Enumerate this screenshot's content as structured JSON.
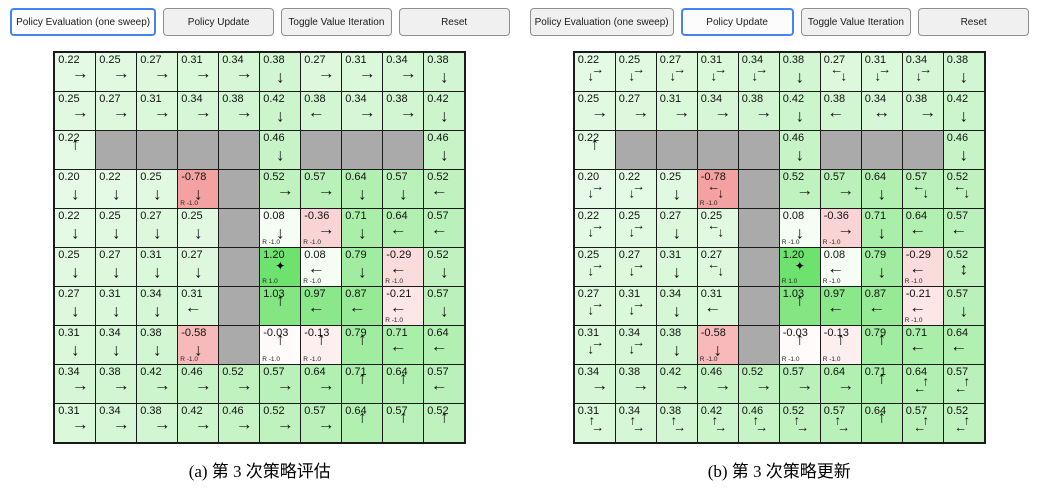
{
  "colors": {
    "active_button_border": "#4285f4",
    "button_bg": "#f0f0f0",
    "active_button_bg": "#fcfcfc",
    "wall": "#aaaaaa",
    "grid_line": "#1a1a1a",
    "positive_max": "#6ee26e",
    "negative_max": "#ee6e6e"
  },
  "panels": [
    {
      "caption": "(a) 第 3 次策略评估",
      "buttons": [
        {
          "label": "Policy Evaluation (one sweep)",
          "active": true
        },
        {
          "label": "Policy Update",
          "active": false
        },
        {
          "label": "Toggle Value Iteration",
          "active": false
        },
        {
          "label": "Reset",
          "active": false
        }
      ],
      "grid": {
        "rows": [
          [
            {
              "v": "0.22",
              "a": "R"
            },
            {
              "v": "0.25",
              "a": "R"
            },
            {
              "v": "0.27",
              "a": "R"
            },
            {
              "v": "0.31",
              "a": "R"
            },
            {
              "v": "0.34",
              "a": "R"
            },
            {
              "v": "0.38",
              "a": "D"
            },
            {
              "v": "0.27",
              "a": "R"
            },
            {
              "v": "0.31",
              "a": "R"
            },
            {
              "v": "0.34",
              "a": "R"
            },
            {
              "v": "0.38",
              "a": "D"
            }
          ],
          [
            {
              "v": "0.25",
              "a": "R"
            },
            {
              "v": "0.27",
              "a": "R"
            },
            {
              "v": "0.31",
              "a": "R"
            },
            {
              "v": "0.34",
              "a": "R"
            },
            {
              "v": "0.38",
              "a": "R"
            },
            {
              "v": "0.42",
              "a": "D"
            },
            {
              "v": "0.38",
              "a": "L"
            },
            {
              "v": "0.34",
              "a": "R"
            },
            {
              "v": "0.38",
              "a": "R"
            },
            {
              "v": "0.42",
              "a": "D"
            }
          ],
          [
            {
              "v": "0.22",
              "a": "U"
            },
            {
              "w": 1
            },
            {
              "w": 1
            },
            {
              "w": 1
            },
            {
              "w": 1
            },
            {
              "v": "0.46",
              "a": "D"
            },
            {
              "w": 1
            },
            {
              "w": 1
            },
            {
              "w": 1
            },
            {
              "v": "0.46",
              "a": "D"
            }
          ],
          [
            {
              "v": "0.20",
              "a": "D"
            },
            {
              "v": "0.22",
              "a": "D"
            },
            {
              "v": "0.25",
              "a": "D"
            },
            {
              "v": "-0.78",
              "a": "D",
              "r": "R -1.0"
            },
            {
              "w": 1
            },
            {
              "v": "0.52",
              "a": "R"
            },
            {
              "v": "0.57",
              "a": "R"
            },
            {
              "v": "0.64",
              "a": "D"
            },
            {
              "v": "0.57",
              "a": "D"
            },
            {
              "v": "0.52",
              "a": "L"
            }
          ],
          [
            {
              "v": "0.22",
              "a": "D"
            },
            {
              "v": "0.25",
              "a": "D"
            },
            {
              "v": "0.27",
              "a": "D"
            },
            {
              "v": "0.25",
              "a": "D"
            },
            {
              "w": 1
            },
            {
              "v": "0.08",
              "a": "D",
              "r": "R -1.0"
            },
            {
              "v": "-0.36",
              "a": "R",
              "r": "R -1.0"
            },
            {
              "v": "0.71",
              "a": "D"
            },
            {
              "v": "0.64",
              "a": "L"
            },
            {
              "v": "0.57",
              "a": "L"
            }
          ],
          [
            {
              "v": "0.25",
              "a": "D"
            },
            {
              "v": "0.27",
              "a": "D"
            },
            {
              "v": "0.31",
              "a": "D"
            },
            {
              "v": "0.27",
              "a": "D"
            },
            {
              "w": 1
            },
            {
              "v": "1.20",
              "s": 1,
              "r": "R 1.0"
            },
            {
              "v": "0.08",
              "a": "L",
              "r": "R -1.0"
            },
            {
              "v": "0.79",
              "a": "D"
            },
            {
              "v": "-0.29",
              "a": "L",
              "r": "R -1.0"
            },
            {
              "v": "0.52",
              "a": "D"
            }
          ],
          [
            {
              "v": "0.27",
              "a": "D"
            },
            {
              "v": "0.31",
              "a": "D"
            },
            {
              "v": "0.34",
              "a": "D"
            },
            {
              "v": "0.31",
              "a": "L"
            },
            {
              "w": 1
            },
            {
              "v": "1.03",
              "a": "U"
            },
            {
              "v": "0.97",
              "a": "L"
            },
            {
              "v": "0.87",
              "a": "L"
            },
            {
              "v": "-0.21",
              "a": "L",
              "r": "R -1.0"
            },
            {
              "v": "0.57",
              "a": "D"
            }
          ],
          [
            {
              "v": "0.31",
              "a": "D"
            },
            {
              "v": "0.34",
              "a": "D"
            },
            {
              "v": "0.38",
              "a": "D"
            },
            {
              "v": "-0.58",
              "a": "D",
              "r": "R -1.0"
            },
            {
              "w": 1
            },
            {
              "v": "-0.03",
              "a": "U",
              "r": "R -1.0"
            },
            {
              "v": "-0.13",
              "a": "U",
              "r": "R -1.0"
            },
            {
              "v": "0.79",
              "a": "U"
            },
            {
              "v": "0.71",
              "a": "L"
            },
            {
              "v": "0.64",
              "a": "L"
            }
          ],
          [
            {
              "v": "0.34",
              "a": "R"
            },
            {
              "v": "0.38",
              "a": "R"
            },
            {
              "v": "0.42",
              "a": "R"
            },
            {
              "v": "0.46",
              "a": "R"
            },
            {
              "v": "0.52",
              "a": "R"
            },
            {
              "v": "0.57",
              "a": "R"
            },
            {
              "v": "0.64",
              "a": "R"
            },
            {
              "v": "0.71",
              "a": "U"
            },
            {
              "v": "0.64",
              "a": "U"
            },
            {
              "v": "0.57",
              "a": "L"
            }
          ],
          [
            {
              "v": "0.31",
              "a": "R"
            },
            {
              "v": "0.34",
              "a": "R"
            },
            {
              "v": "0.38",
              "a": "R"
            },
            {
              "v": "0.42",
              "a": "R"
            },
            {
              "v": "0.46",
              "a": "R"
            },
            {
              "v": "0.52",
              "a": "R"
            },
            {
              "v": "0.57",
              "a": "R"
            },
            {
              "v": "0.64",
              "a": "U"
            },
            {
              "v": "0.57",
              "a": "U"
            },
            {
              "v": "0.52",
              "a": "U"
            }
          ]
        ]
      }
    },
    {
      "caption": "(b) 第 3 次策略更新",
      "buttons": [
        {
          "label": "Policy Evaluation (one sweep)",
          "active": false
        },
        {
          "label": "Policy Update",
          "active": true
        },
        {
          "label": "Toggle Value Iteration",
          "active": false
        },
        {
          "label": "Reset",
          "active": false
        }
      ],
      "grid": {
        "rows": [
          [
            {
              "v": "0.22",
              "a": "DR"
            },
            {
              "v": "0.25",
              "a": "DR"
            },
            {
              "v": "0.27",
              "a": "DR"
            },
            {
              "v": "0.31",
              "a": "DR"
            },
            {
              "v": "0.34",
              "a": "DR"
            },
            {
              "v": "0.38",
              "a": "D"
            },
            {
              "v": "0.27",
              "a": "LD"
            },
            {
              "v": "0.31",
              "a": "DR"
            },
            {
              "v": "0.34",
              "a": "DR"
            },
            {
              "v": "0.38",
              "a": "D"
            }
          ],
          [
            {
              "v": "0.25",
              "a": "R"
            },
            {
              "v": "0.27",
              "a": "R"
            },
            {
              "v": "0.31",
              "a": "R"
            },
            {
              "v": "0.34",
              "a": "R"
            },
            {
              "v": "0.38",
              "a": "R"
            },
            {
              "v": "0.42",
              "a": "D"
            },
            {
              "v": "0.38",
              "a": "L"
            },
            {
              "v": "0.34",
              "a": "LR"
            },
            {
              "v": "0.38",
              "a": "R"
            },
            {
              "v": "0.42",
              "a": "D"
            }
          ],
          [
            {
              "v": "0.22",
              "a": "U"
            },
            {
              "w": 1
            },
            {
              "w": 1
            },
            {
              "w": 1
            },
            {
              "w": 1
            },
            {
              "v": "0.46",
              "a": "D"
            },
            {
              "w": 1
            },
            {
              "w": 1
            },
            {
              "w": 1
            },
            {
              "v": "0.46",
              "a": "D"
            }
          ],
          [
            {
              "v": "0.20",
              "a": "DR"
            },
            {
              "v": "0.22",
              "a": "DR"
            },
            {
              "v": "0.25",
              "a": "D"
            },
            {
              "v": "-0.78",
              "a": "LD",
              "r": "R -1.0"
            },
            {
              "w": 1
            },
            {
              "v": "0.52",
              "a": "R"
            },
            {
              "v": "0.57",
              "a": "R"
            },
            {
              "v": "0.64",
              "a": "D"
            },
            {
              "v": "0.57",
              "a": "LD"
            },
            {
              "v": "0.52",
              "a": "LD"
            }
          ],
          [
            {
              "v": "0.22",
              "a": "DR"
            },
            {
              "v": "0.25",
              "a": "DR"
            },
            {
              "v": "0.27",
              "a": "D"
            },
            {
              "v": "0.25",
              "a": "LD"
            },
            {
              "w": 1
            },
            {
              "v": "0.08",
              "a": "D",
              "r": "R -1.0"
            },
            {
              "v": "-0.36",
              "a": "R",
              "r": "R -1.0"
            },
            {
              "v": "0.71",
              "a": "D"
            },
            {
              "v": "0.64",
              "a": "L"
            },
            {
              "v": "0.57",
              "a": "L"
            }
          ],
          [
            {
              "v": "0.25",
              "a": "DR"
            },
            {
              "v": "0.27",
              "a": "DR"
            },
            {
              "v": "0.31",
              "a": "D"
            },
            {
              "v": "0.27",
              "a": "LD"
            },
            {
              "w": 1
            },
            {
              "v": "1.20",
              "s": 1,
              "r": "R 1.0"
            },
            {
              "v": "0.08",
              "a": "L",
              "r": "R -1.0"
            },
            {
              "v": "0.79",
              "a": "D"
            },
            {
              "v": "-0.29",
              "a": "L",
              "r": "R -1.0"
            },
            {
              "v": "0.52",
              "a": "UD"
            }
          ],
          [
            {
              "v": "0.27",
              "a": "DR"
            },
            {
              "v": "0.31",
              "a": "DR"
            },
            {
              "v": "0.34",
              "a": "D"
            },
            {
              "v": "0.31",
              "a": "L"
            },
            {
              "w": 1
            },
            {
              "v": "1.03",
              "a": "U"
            },
            {
              "v": "0.97",
              "a": "L"
            },
            {
              "v": "0.87",
              "a": "L"
            },
            {
              "v": "-0.21",
              "a": "L",
              "r": "R -1.0"
            },
            {
              "v": "0.57",
              "a": "D"
            }
          ],
          [
            {
              "v": "0.31",
              "a": "DR"
            },
            {
              "v": "0.34",
              "a": "DR"
            },
            {
              "v": "0.38",
              "a": "D"
            },
            {
              "v": "-0.58",
              "a": "D",
              "r": "R -1.0"
            },
            {
              "w": 1
            },
            {
              "v": "-0.03",
              "a": "U",
              "r": "R -1.0"
            },
            {
              "v": "-0.13",
              "a": "U",
              "r": "R -1.0"
            },
            {
              "v": "0.79",
              "a": "U"
            },
            {
              "v": "0.71",
              "a": "L"
            },
            {
              "v": "0.64",
              "a": "L"
            }
          ],
          [
            {
              "v": "0.34",
              "a": "R"
            },
            {
              "v": "0.38",
              "a": "R"
            },
            {
              "v": "0.42",
              "a": "R"
            },
            {
              "v": "0.46",
              "a": "R"
            },
            {
              "v": "0.52",
              "a": "R"
            },
            {
              "v": "0.57",
              "a": "R"
            },
            {
              "v": "0.64",
              "a": "R"
            },
            {
              "v": "0.71",
              "a": "U"
            },
            {
              "v": "0.64",
              "a": "UL"
            },
            {
              "v": "0.57",
              "a": "UL"
            }
          ],
          [
            {
              "v": "0.31",
              "a": "UR"
            },
            {
              "v": "0.34",
              "a": "UR"
            },
            {
              "v": "0.38",
              "a": "UR"
            },
            {
              "v": "0.42",
              "a": "UR"
            },
            {
              "v": "0.46",
              "a": "UR"
            },
            {
              "v": "0.52",
              "a": "UR"
            },
            {
              "v": "0.57",
              "a": "UR"
            },
            {
              "v": "0.64",
              "a": "U"
            },
            {
              "v": "0.57",
              "a": "UL"
            },
            {
              "v": "0.52",
              "a": "UL"
            }
          ]
        ]
      }
    }
  ]
}
